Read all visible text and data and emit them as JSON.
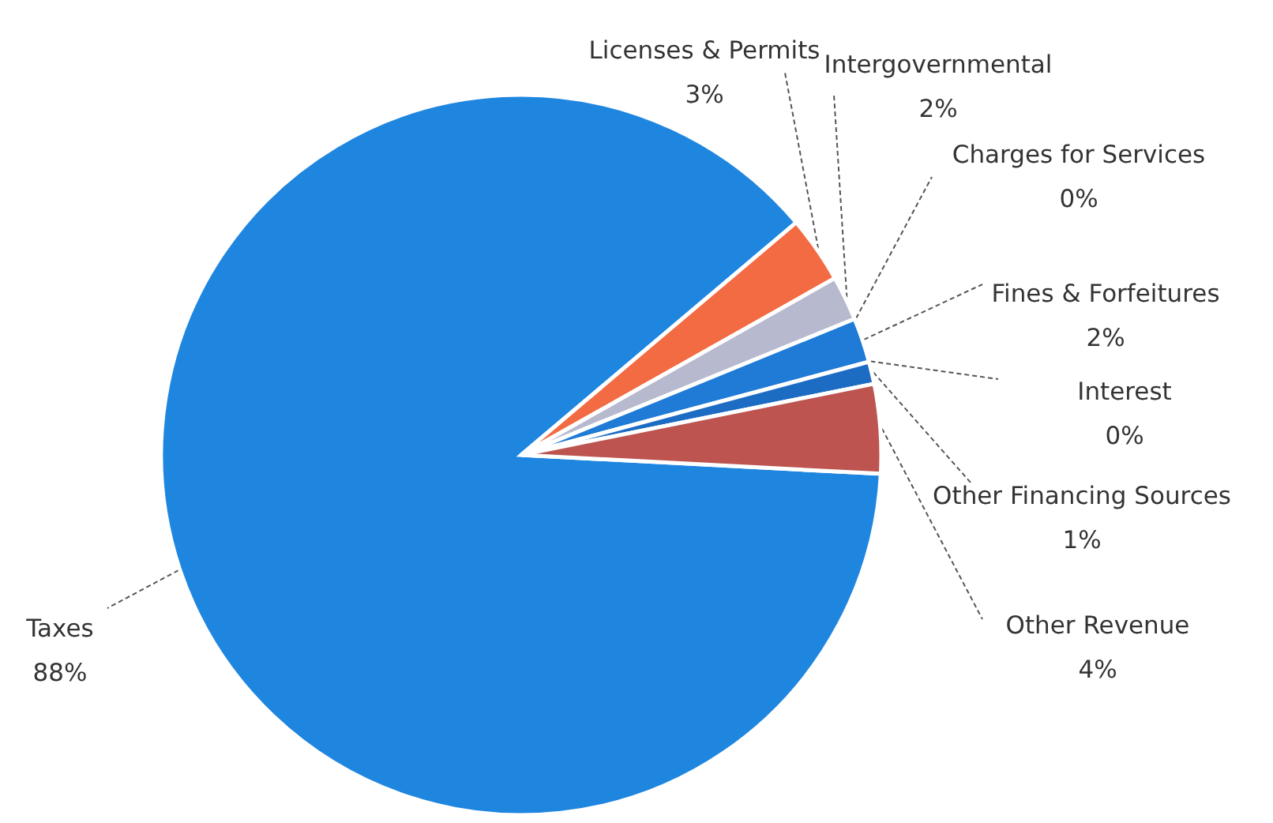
{
  "chart_data": {
    "type": "pie",
    "categories": [
      "Taxes",
      "Licenses & Permits",
      "Intergovernmental",
      "Charges for Services",
      "Fines & Forfeitures",
      "Interest",
      "Other Financing Sources",
      "Other Revenue"
    ],
    "values": [
      88,
      3,
      2,
      0,
      2,
      0,
      1,
      4
    ],
    "value_labels": [
      "88%",
      "3%",
      "2%",
      "0%",
      "2%",
      "0%",
      "1%",
      "4%"
    ],
    "colors": [
      "#1f86e0",
      "#f26b43",
      "#b7b9cf",
      "#f2e27a",
      "#1f7bd6",
      "#9fc3e8",
      "#1c6cc4",
      "#bd544f"
    ]
  }
}
